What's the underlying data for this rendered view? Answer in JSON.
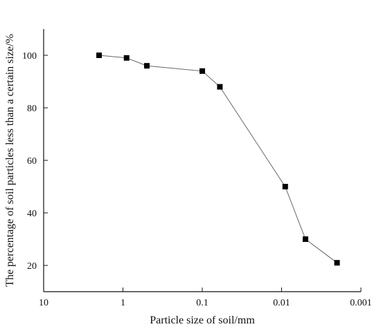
{
  "chart_data": {
    "type": "line",
    "xlabel": "Particle size of soil/mm",
    "ylabel": "The percentage of soil particles less than a certain size/%",
    "x_scale": "log",
    "x_reversed": true,
    "xlim": [
      10,
      0.001
    ],
    "ylim": [
      10,
      110
    ],
    "x_ticks": [
      10,
      1,
      0.1,
      0.01,
      0.001
    ],
    "x_tick_labels": [
      "10",
      "1",
      "0.1",
      "0.01",
      "0.001"
    ],
    "y_ticks": [
      20,
      40,
      60,
      80,
      100
    ],
    "y_tick_labels": [
      "20",
      "40",
      "60",
      "80",
      "100"
    ],
    "grid": false,
    "marker": "square",
    "colors": {
      "line": "#666666",
      "marker": "#000000"
    },
    "series": [
      {
        "x": [
          2,
          0.9,
          0.5,
          0.1,
          0.06,
          0.009,
          0.005,
          0.002
        ],
        "y": [
          100,
          99,
          96,
          94,
          88,
          50,
          30,
          21
        ]
      }
    ]
  }
}
